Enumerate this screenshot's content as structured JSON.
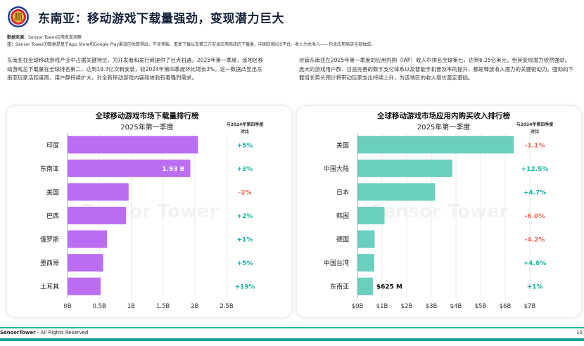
{
  "header": {
    "title": "东南亚：移动游戏下载量强劲，变现潜力巨大",
    "source_label": "数据来源：",
    "source_text": "Sensor Tower应用表现洞察",
    "note_label": "注：",
    "note_text": "Sensor Tower的数据是基于App Store和Google Play渠道的估算得出，不含预装、重复下载以及第三方安卓应用商店的下载量。中国仅限iOS平台。收入为总收入——包含应用商店全部抽成。"
  },
  "paragraphs": {
    "left": "东南亚在全球移动游戏产业中占据关键地位，为开发者和发行商提供了巨大机遇。2025年第一季度，该地区移动游戏总下载量在全球排名第二，达到19.3亿次新安装，较2024年第四季度环比增长3%。这一数据凸显出东南亚玩家活跃度高、用户群持续扩大，对全新移动游戏内容和体验有着强烈需求。",
    "right": "尽管东南亚在2025年第一季度的应用内购（IAP）收入中排名全球第七，达到6.25亿美元，但其变现潜力依然强劲。庞大的游戏用户群、日益完善的数字支付体系以及智能手机普及率的提升，都是释放收入潜力的关键驱动力。强劲的下载增长势头预计将带动玩家支出持续上升，为该地区的收入增长奠定基础。"
  },
  "watermark": "Sensor Tower",
  "colors": {
    "download_bar": "#bb6ef2",
    "revenue_bar": "#6bcfbe",
    "positive": "#16b3a3",
    "negative": "#f06a55",
    "grid": "#e5e5e5"
  },
  "chart_data": [
    {
      "type": "bar",
      "orientation": "horizontal",
      "title": "全球移动游戏市场下载量排行榜",
      "subtitle": "2025年第一季度",
      "change_header": [
        "与2024年第四季度",
        "对比"
      ],
      "categories": [
        "印度",
        "东南亚",
        "美国",
        "巴西",
        "俄罗斯",
        "墨西哥",
        "土耳其"
      ],
      "values": [
        2.05,
        1.93,
        0.96,
        0.92,
        0.62,
        0.56,
        0.52
      ],
      "unit": "B",
      "changes": [
        "+5%",
        "+3%",
        "-2%",
        "+2%",
        "+1%",
        "+5%",
        "+19%"
      ],
      "data_labels": [
        null,
        "1.93 B",
        null,
        null,
        null,
        null,
        null
      ],
      "xlim": [
        0,
        2.5
      ],
      "xticks": [
        0,
        0.5,
        1,
        1.5,
        2,
        2.5
      ],
      "xtick_labels": [
        "0B",
        "0.5B",
        "1B",
        "1.5B",
        "2B",
        "2.5B"
      ],
      "grid": true
    },
    {
      "type": "bar",
      "orientation": "horizontal",
      "title": "全球移动游戏市场应用内购买收入排行榜",
      "subtitle": "2025年第一季度",
      "change_header": [
        "与2024年第四季度",
        "对比"
      ],
      "categories": [
        "美国",
        "中国大陆",
        "日本",
        "韩国",
        "德国",
        "中国台湾",
        "东南亚"
      ],
      "values": [
        6.35,
        3.85,
        3.15,
        1.1,
        0.7,
        0.68,
        0.625
      ],
      "unit": "B",
      "changes": [
        "-1.1%",
        "+12.5%",
        "+4.7%",
        "-6.0%",
        "-4.2%",
        "+4.6%",
        "+1%"
      ],
      "data_labels": [
        null,
        null,
        null,
        null,
        null,
        null,
        "$625 M"
      ],
      "xlim": [
        0,
        7
      ],
      "xticks": [
        0,
        1,
        2,
        3,
        4,
        5,
        6,
        7
      ],
      "xtick_labels": [
        "$0B",
        "$1B",
        "$2B",
        "$3B",
        "$4B",
        "$5B",
        "$6B",
        "$7B"
      ],
      "grid": true
    }
  ],
  "footer": {
    "brand_bold": "SensorTower",
    "brand_rest": " - All Rights Reserved",
    "page": "10"
  }
}
